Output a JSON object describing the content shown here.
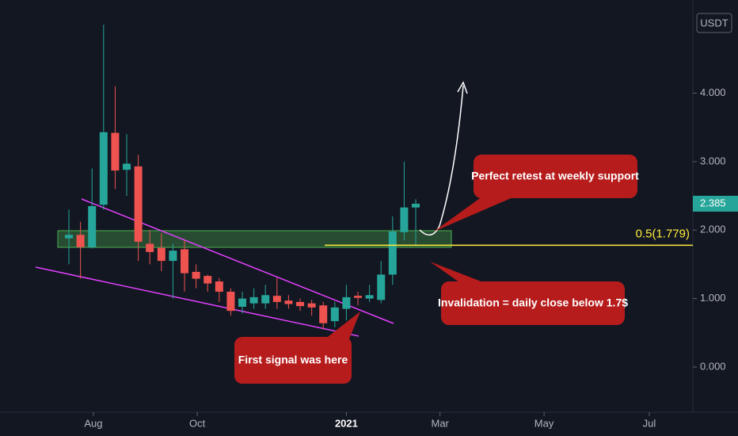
{
  "chart_data": {
    "type": "candlestick",
    "currency": "USDT",
    "x": [
      0,
      1,
      2,
      3,
      4,
      5,
      6,
      7,
      8,
      9,
      10,
      11,
      12,
      13,
      14,
      15,
      16,
      17,
      18,
      19,
      20,
      21,
      22,
      23,
      24,
      25,
      26,
      27,
      28,
      29,
      30
    ],
    "open": [
      1.88,
      1.93,
      1.75,
      2.37,
      3.42,
      2.88,
      2.93,
      1.8,
      1.74,
      1.55,
      1.72,
      1.39,
      1.33,
      1.25,
      1.1,
      0.88,
      0.93,
      0.93,
      1.04,
      0.97,
      0.95,
      0.93,
      0.9,
      0.67,
      0.85,
      1.04,
      1.0,
      0.98,
      1.35,
      1.97,
      2.33
    ],
    "high": [
      2.3,
      2.12,
      2.9,
      5.0,
      4.1,
      3.4,
      3.1,
      2.0,
      1.95,
      1.8,
      1.85,
      1.5,
      1.35,
      1.3,
      1.15,
      1.1,
      1.15,
      1.2,
      1.3,
      1.05,
      1.0,
      0.98,
      0.95,
      0.95,
      1.2,
      1.1,
      1.2,
      1.55,
      2.2,
      3.0,
      2.45
    ],
    "low": [
      1.5,
      1.29,
      1.73,
      2.3,
      2.6,
      2.5,
      1.55,
      1.5,
      1.4,
      1.0,
      1.1,
      1.15,
      1.1,
      0.95,
      0.75,
      0.78,
      0.85,
      0.85,
      0.85,
      0.85,
      0.82,
      0.75,
      0.55,
      0.58,
      0.68,
      0.9,
      0.95,
      0.93,
      1.2,
      1.85,
      1.78
    ],
    "close": [
      1.93,
      1.75,
      2.35,
      3.43,
      2.87,
      2.97,
      1.83,
      1.68,
      1.55,
      1.7,
      1.37,
      1.29,
      1.22,
      1.1,
      0.82,
      1.0,
      1.02,
      1.05,
      0.95,
      0.92,
      0.89,
      0.87,
      0.64,
      0.87,
      1.02,
      1.01,
      1.05,
      1.35,
      1.98,
      2.33,
      2.385
    ],
    "up_color": "#26a69a",
    "down_color": "#ef5350",
    "xlim": [
      -5.96,
      53.97
    ],
    "xticks": [
      {
        "value": 2.12,
        "label": "Aug"
      },
      {
        "value": 11.1,
        "label": "Oct"
      },
      {
        "value": 24.0,
        "label": "2021"
      },
      {
        "value": 32.1,
        "label": "Mar"
      },
      {
        "value": 41.1,
        "label": "May"
      },
      {
        "value": 50.2,
        "label": "Jul"
      }
    ],
    "ylim": [
      -0.66,
      5.36
    ],
    "yticks": [
      {
        "value": 0,
        "label": "0.000"
      },
      {
        "value": 1,
        "label": "1.000"
      },
      {
        "value": 2,
        "label": "2.000"
      },
      {
        "value": 3,
        "label": "3.000"
      },
      {
        "value": 4,
        "label": "4.000"
      }
    ],
    "last_price": 2.385,
    "fib_level": {
      "value": 1.779,
      "label": "0.5(1.779)"
    },
    "annotations": [
      "Perfect retest at weekly support",
      "Invalidation = daily close below 1.7$",
      "First signal was here"
    ]
  }
}
